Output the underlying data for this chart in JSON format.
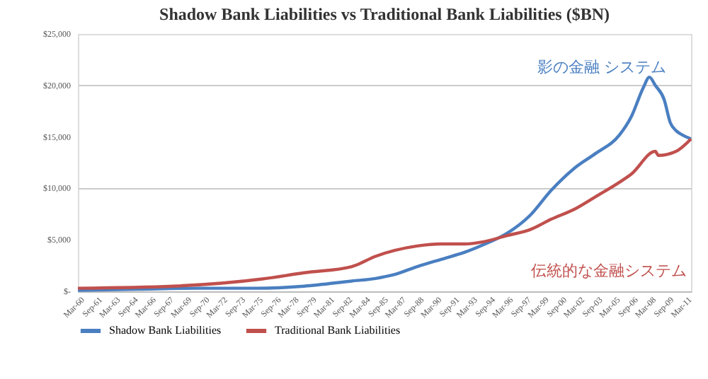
{
  "chart_data": {
    "type": "line",
    "title": "Shadow Bank Liabilities vs Traditional Bank Liabilities ($BN)",
    "xlim": [
      "1960-01",
      "2011-07"
    ],
    "xticks": [
      {
        "value": "1960-03",
        "label": "Mar-60"
      },
      {
        "value": "1961-09",
        "label": "Sep-61"
      },
      {
        "value": "1963-03",
        "label": "Mar-63"
      },
      {
        "value": "1964-09",
        "label": "Sep-64"
      },
      {
        "value": "1966-03",
        "label": "Mar-66"
      },
      {
        "value": "1967-09",
        "label": "Sep-67"
      },
      {
        "value": "1969-03",
        "label": "Mar-69"
      },
      {
        "value": "1970-09",
        "label": "Sep-70"
      },
      {
        "value": "1972-03",
        "label": "Mar-72"
      },
      {
        "value": "1973-09",
        "label": "Sep-73"
      },
      {
        "value": "1975-03",
        "label": "Mar-75"
      },
      {
        "value": "1976-09",
        "label": "Sep-76"
      },
      {
        "value": "1978-03",
        "label": "Mar-78"
      },
      {
        "value": "1979-09",
        "label": "Sep-79"
      },
      {
        "value": "1981-03",
        "label": "Mar-81"
      },
      {
        "value": "1982-09",
        "label": "Sep-82"
      },
      {
        "value": "1984-03",
        "label": "Mar-84"
      },
      {
        "value": "1985-09",
        "label": "Sep-85"
      },
      {
        "value": "1987-03",
        "label": "Mar-87"
      },
      {
        "value": "1988-09",
        "label": "Sep-88"
      },
      {
        "value": "1990-03",
        "label": "Mar-90"
      },
      {
        "value": "1991-09",
        "label": "Sep-91"
      },
      {
        "value": "1993-03",
        "label": "Mar-93"
      },
      {
        "value": "1994-09",
        "label": "Sep-94"
      },
      {
        "value": "1996-03",
        "label": "Mar-96"
      },
      {
        "value": "1997-09",
        "label": "Sep-97"
      },
      {
        "value": "1999-03",
        "label": "Mar-99"
      },
      {
        "value": "2000-09",
        "label": "Sep-00"
      },
      {
        "value": "2002-03",
        "label": "Mar-02"
      },
      {
        "value": "2003-09",
        "label": "Sep-03"
      },
      {
        "value": "2005-03",
        "label": "Mar-05"
      },
      {
        "value": "2006-09",
        "label": "Sep-06"
      },
      {
        "value": "2008-03",
        "label": "Mar-08"
      },
      {
        "value": "2009-09",
        "label": "Sep-09"
      },
      {
        "value": "2011-03",
        "label": "Mar-11"
      }
    ],
    "ylim": [
      0,
      25000
    ],
    "yticks": [
      {
        "value": 0,
        "label": "$-"
      },
      {
        "value": 5000,
        "label": "$5,000"
      },
      {
        "value": 10000,
        "label": "$10,000"
      },
      {
        "value": 15000,
        "label": "$15,000"
      },
      {
        "value": 20000,
        "label": "$20,000"
      },
      {
        "value": 25000,
        "label": "$25,000"
      }
    ],
    "grid": "y",
    "legend": "bottom",
    "series": [
      {
        "name": "Shadow Bank Liabilities",
        "color": "#4a7fc1",
        "x": [
          "1960-01",
          "1965-01",
          "1970-01",
          "1975-01",
          "1979-01",
          "1983-01",
          "1985-01",
          "1986-07",
          "1988-07",
          "1990-07",
          "1992-07",
          "1994-01",
          "1996-01",
          "1998-01",
          "1999-10",
          "2001-10",
          "2003-07",
          "2005-07",
          "2006-07",
          "2007-07",
          "2008-01",
          "2008-07",
          "2009-04",
          "2009-10",
          "2010-04",
          "2010-10",
          "2011-07"
        ],
        "values": [
          100,
          200,
          300,
          300,
          500,
          1000,
          1250,
          1600,
          2400,
          3100,
          3800,
          4500,
          5600,
          7400,
          9800,
          12000,
          13400,
          15200,
          17000,
          19800,
          20800,
          20000,
          18600,
          16400,
          15600,
          15200,
          14800
        ]
      },
      {
        "name": "Traditional Bank Liabilities",
        "color": "#c0504d",
        "x": [
          "1960-01",
          "1968-01",
          "1975-07",
          "1979-01",
          "1983-01",
          "1985-01",
          "1988-07",
          "1990-07",
          "1992-07",
          "1994-01",
          "1996-01",
          "1998-01",
          "1999-10",
          "2001-10",
          "2003-07",
          "2005-07",
          "2006-07",
          "2008-07",
          "2008-10",
          "2010-04",
          "2011-07"
        ],
        "values": [
          300,
          500,
          1200,
          1800,
          2400,
          3400,
          4400,
          4600,
          4600,
          4800,
          5400,
          6000,
          7000,
          8000,
          9200,
          10600,
          11400,
          13600,
          13200,
          13600,
          14800
        ]
      }
    ],
    "annotations": [
      "影の金融 システム",
      "伝統的な金融システム"
    ]
  }
}
